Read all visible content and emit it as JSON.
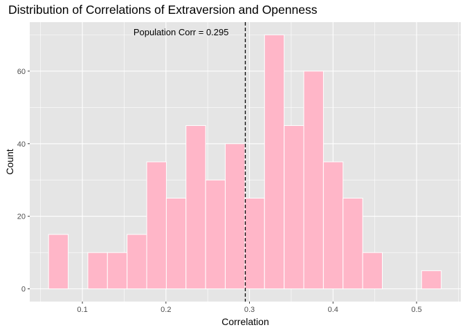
{
  "chart_data": {
    "type": "bar",
    "title": "Distribution of Correlations of Extraversion and Openness",
    "xlabel": "Correlation",
    "ylabel": "Count",
    "xlim": [
      0.037,
      0.553
    ],
    "ylim": [
      -3.5,
      73.5
    ],
    "x_ticks": [
      0.1,
      0.2,
      0.3,
      0.4,
      0.5
    ],
    "x_tick_labels": [
      "0.1",
      "0.2",
      "0.3",
      "0.4",
      "0.5"
    ],
    "y_ticks": [
      0,
      20,
      40,
      60
    ],
    "y_tick_labels": [
      "0",
      "20",
      "40",
      "60"
    ],
    "grid": true,
    "bin_width": 0.0235,
    "bins": [
      {
        "left": 0.0595,
        "right": 0.083,
        "count": 15
      },
      {
        "left": 0.083,
        "right": 0.1065,
        "count": 0
      },
      {
        "left": 0.1065,
        "right": 0.13,
        "count": 10
      },
      {
        "left": 0.13,
        "right": 0.1535,
        "count": 10
      },
      {
        "left": 0.1535,
        "right": 0.177,
        "count": 15
      },
      {
        "left": 0.177,
        "right": 0.2005,
        "count": 35
      },
      {
        "left": 0.2005,
        "right": 0.224,
        "count": 25
      },
      {
        "left": 0.224,
        "right": 0.2475,
        "count": 45
      },
      {
        "left": 0.2475,
        "right": 0.271,
        "count": 30
      },
      {
        "left": 0.271,
        "right": 0.2945,
        "count": 40
      },
      {
        "left": 0.2945,
        "right": 0.318,
        "count": 25
      },
      {
        "left": 0.318,
        "right": 0.3415,
        "count": 70
      },
      {
        "left": 0.3415,
        "right": 0.365,
        "count": 45
      },
      {
        "left": 0.365,
        "right": 0.3885,
        "count": 60
      },
      {
        "left": 0.3885,
        "right": 0.412,
        "count": 35
      },
      {
        "left": 0.412,
        "right": 0.4355,
        "count": 25
      },
      {
        "left": 0.4355,
        "right": 0.459,
        "count": 10
      },
      {
        "left": 0.459,
        "right": 0.4825,
        "count": 0
      },
      {
        "left": 0.4825,
        "right": 0.506,
        "count": 0
      },
      {
        "left": 0.506,
        "right": 0.5295,
        "count": 5
      }
    ],
    "reference_line": {
      "x": 0.295,
      "style": "dashed",
      "color": "#000000"
    },
    "annotation": {
      "text": "Population Corr = 0.295"
    },
    "colors": {
      "bar_fill": "#ffb6c8",
      "bar_outline": "#ffffff",
      "panel_background": "#e5e5e5",
      "grid": "#ffffff"
    }
  }
}
